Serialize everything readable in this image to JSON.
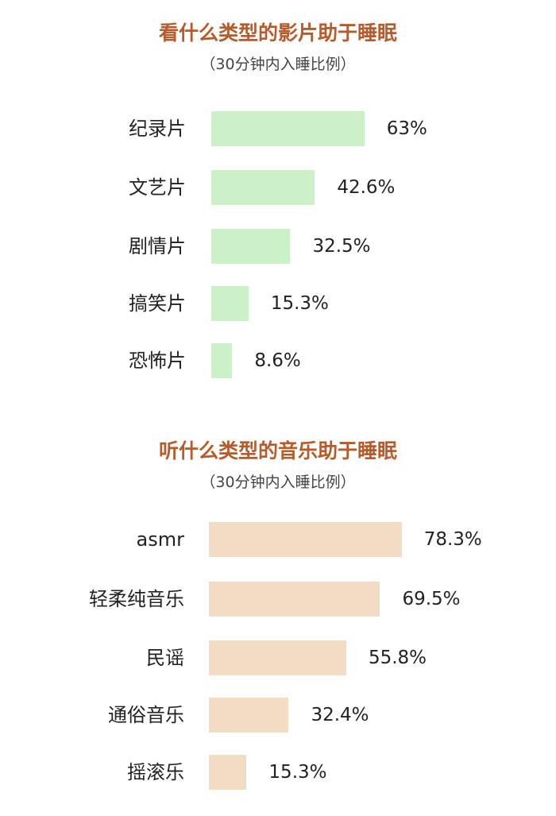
{
  "chart_data": [
    {
      "type": "bar",
      "orientation": "horizontal",
      "title": "看什么类型的影片助于睡眠",
      "subtitle": "（30分钟内入睡比例）",
      "categories": [
        "纪录片",
        "文艺片",
        "剧情片",
        "搞笑片",
        "恐怖片"
      ],
      "values": [
        63,
        42.6,
        32.5,
        15.3,
        8.6
      ],
      "value_labels": [
        "63%",
        "42.6%",
        "32.5%",
        "15.3%",
        "8.6%"
      ],
      "bar_color": "#ccf0c8",
      "xlim": [
        0,
        100
      ],
      "grid": false
    },
    {
      "type": "bar",
      "orientation": "horizontal",
      "title": "听什么类型的音乐助于睡眠",
      "subtitle": "（30分钟内入睡比例）",
      "categories": [
        "asmr",
        "轻柔纯音乐",
        "民谣",
        "通俗音乐",
        "摇滚乐"
      ],
      "values": [
        78.3,
        69.5,
        55.8,
        32.4,
        15.3
      ],
      "value_labels": [
        "78.3%",
        "69.5%",
        "55.8%",
        "32.4%",
        "15.3%"
      ],
      "bar_color": "#f2dcc4",
      "xlim": [
        0,
        100
      ],
      "grid": false
    }
  ]
}
